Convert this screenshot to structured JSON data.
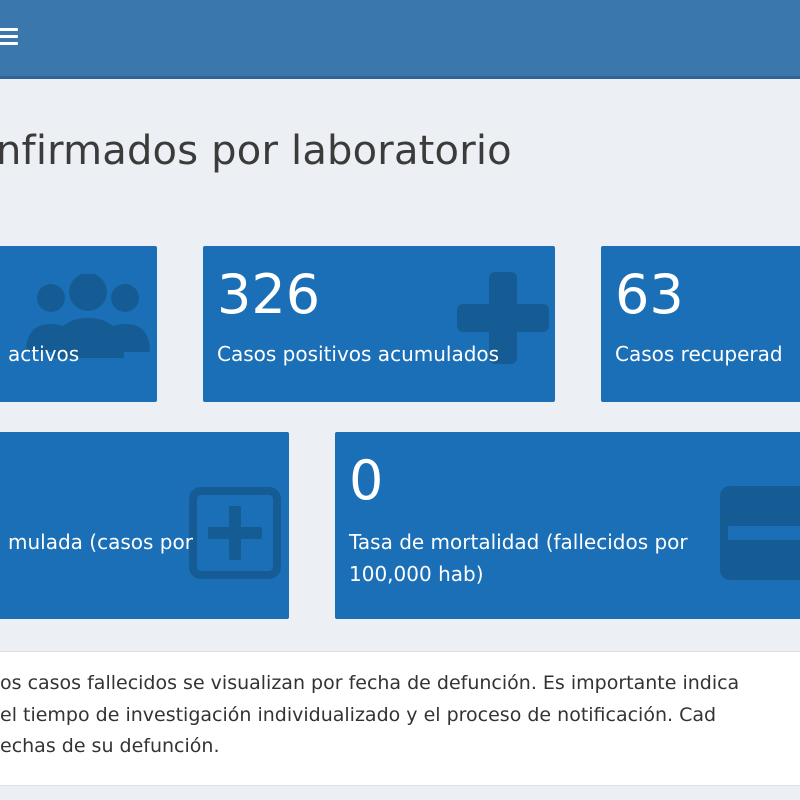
{
  "header": {
    "menu_icon": "hamburger-menu-icon",
    "color": "#3a77ad"
  },
  "page": {
    "title": "nfirmados por laboratorio"
  },
  "cards": {
    "activos": {
      "value": "",
      "label": "activos",
      "icon": "people-group-icon"
    },
    "positivos": {
      "value": "326",
      "label": "Casos positivos acumulados",
      "icon": "plus-icon"
    },
    "recuperados": {
      "value": "63",
      "label": "Casos recuperad",
      "icon": ""
    },
    "incidencia": {
      "value": "",
      "label": "mulada (casos por",
      "icon": "plus-square-icon"
    },
    "mortalidad": {
      "value": "0",
      "label_line1": "Tasa de mortalidad (fallecidos por",
      "label_line2": "100,000 hab)",
      "icon": "minus-square-icon"
    },
    "card_color": "#1a6fb6"
  },
  "notice": {
    "line1": "os casos fallecidos se visualizan por fecha de defunción. Es importante indica",
    "line2": " el tiempo de investigación individualizado y el proceso de notificación. Cad",
    "line3": "echas de su defunción."
  }
}
